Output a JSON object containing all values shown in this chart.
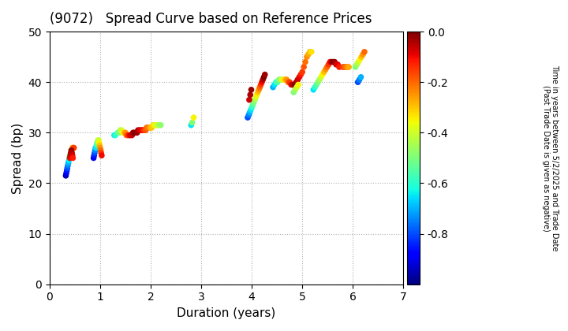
{
  "title": "(9072)   Spread Curve based on Reference Prices",
  "xlabel": "Duration (years)",
  "ylabel": "Spread (bp)",
  "colorbar_label": "Time in years between 5/2/2025 and Trade Date\n(Past Trade Date is given as negative)",
  "xlim": [
    0,
    7
  ],
  "ylim": [
    0,
    50
  ],
  "xticks": [
    0,
    1,
    2,
    3,
    4,
    5,
    6,
    7
  ],
  "yticks": [
    0,
    10,
    20,
    30,
    40,
    50
  ],
  "cmap": "jet",
  "clim": [
    -1.0,
    0.0
  ],
  "points": {
    "duration": [
      0.32,
      0.33,
      0.34,
      0.35,
      0.36,
      0.37,
      0.38,
      0.39,
      0.4,
      0.41,
      0.42,
      0.43,
      0.44,
      0.45,
      0.46,
      0.47,
      0.48,
      0.4,
      0.41,
      0.42,
      0.43,
      0.44,
      0.45,
      0.46,
      0.87,
      0.88,
      0.89,
      0.9,
      0.91,
      0.92,
      0.93,
      0.94,
      0.95,
      0.96,
      0.97,
      0.98,
      0.99,
      1.0,
      1.01,
      1.02,
      1.03,
      1.28,
      1.3,
      1.35,
      1.38,
      1.4,
      1.42,
      1.45,
      1.48,
      1.5,
      1.52,
      1.55,
      1.58,
      1.6,
      1.63,
      1.65,
      1.67,
      1.7,
      1.73,
      1.75,
      1.78,
      1.8,
      1.83,
      1.85,
      1.88,
      1.9,
      1.92,
      1.95,
      1.98,
      2.0,
      2.02,
      2.05,
      2.08,
      2.1,
      2.13,
      2.15,
      2.18,
      2.2,
      2.8,
      2.82,
      2.85,
      3.92,
      3.94,
      3.96,
      3.98,
      4.0,
      4.02,
      4.04,
      4.06,
      4.08,
      4.1,
      4.12,
      4.14,
      4.16,
      4.18,
      4.2,
      4.22,
      4.24,
      4.26,
      3.95,
      3.97,
      3.99,
      4.42,
      4.45,
      4.48,
      4.51,
      4.54,
      4.57,
      4.6,
      4.63,
      4.66,
      4.69,
      4.72,
      4.75,
      4.78,
      4.81,
      4.85,
      4.88,
      4.91,
      4.94,
      4.97,
      5.0,
      5.03,
      5.06,
      5.09,
      5.12,
      5.15,
      5.18,
      4.83,
      4.86,
      4.89,
      4.92,
      5.22,
      5.25,
      5.28,
      5.31,
      5.34,
      5.37,
      5.4,
      5.43,
      5.46,
      5.49,
      5.52,
      5.55,
      5.58,
      5.61,
      5.64,
      5.67,
      5.7,
      5.73,
      5.8,
      5.83,
      5.86,
      5.89,
      5.92,
      6.05,
      6.08,
      6.11,
      6.14,
      6.17,
      6.2,
      6.23,
      6.1,
      6.13,
      6.16
    ],
    "spread": [
      21.5,
      22.0,
      22.5,
      23.0,
      23.5,
      24.0,
      24.5,
      25.0,
      25.5,
      25.5,
      26.0,
      26.5,
      26.5,
      27.0,
      27.0,
      27.0,
      27.0,
      25.0,
      25.5,
      26.0,
      26.5,
      26.0,
      25.5,
      25.0,
      25.0,
      25.5,
      26.0,
      26.5,
      27.0,
      27.0,
      27.5,
      28.0,
      28.0,
      28.5,
      28.5,
      28.0,
      27.5,
      27.0,
      26.5,
      26.0,
      25.5,
      29.5,
      29.5,
      30.0,
      30.0,
      30.5,
      30.5,
      30.0,
      30.0,
      30.0,
      29.5,
      29.5,
      29.5,
      29.5,
      29.5,
      30.0,
      30.0,
      30.0,
      30.0,
      30.5,
      30.5,
      30.5,
      30.5,
      30.5,
      30.5,
      30.5,
      31.0,
      31.0,
      31.0,
      31.0,
      31.0,
      31.5,
      31.5,
      31.5,
      31.5,
      31.5,
      31.5,
      31.5,
      31.5,
      32.0,
      33.0,
      33.0,
      33.5,
      34.0,
      34.5,
      35.0,
      35.5,
      36.0,
      36.5,
      37.0,
      37.5,
      38.0,
      38.5,
      39.0,
      39.5,
      40.0,
      40.5,
      41.0,
      41.5,
      36.5,
      37.5,
      38.5,
      39.0,
      39.5,
      40.0,
      40.0,
      40.5,
      40.5,
      40.5,
      40.5,
      40.5,
      40.5,
      40.0,
      40.0,
      39.5,
      39.5,
      39.5,
      40.0,
      40.5,
      41.0,
      41.5,
      42.0,
      43.0,
      44.0,
      45.0,
      45.5,
      46.0,
      46.0,
      38.0,
      38.5,
      39.0,
      39.5,
      38.5,
      39.0,
      39.5,
      40.0,
      40.5,
      41.0,
      41.5,
      42.0,
      42.5,
      43.0,
      43.5,
      44.0,
      44.0,
      44.0,
      44.0,
      43.5,
      43.5,
      43.0,
      43.0,
      43.0,
      43.0,
      43.0,
      43.0,
      43.0,
      43.5,
      44.0,
      44.5,
      45.0,
      45.5,
      46.0,
      40.0,
      40.5,
      41.0
    ],
    "color": [
      -0.95,
      -0.9,
      -0.85,
      -0.8,
      -0.75,
      -0.7,
      -0.65,
      -0.6,
      -0.55,
      -0.5,
      -0.45,
      -0.4,
      -0.35,
      -0.3,
      -0.25,
      -0.2,
      -0.15,
      -0.1,
      -0.07,
      -0.04,
      -0.02,
      -0.05,
      -0.08,
      -0.12,
      -0.9,
      -0.85,
      -0.8,
      -0.75,
      -0.7,
      -0.65,
      -0.6,
      -0.55,
      -0.5,
      -0.45,
      -0.4,
      -0.35,
      -0.3,
      -0.25,
      -0.2,
      -0.15,
      -0.1,
      -0.65,
      -0.6,
      -0.55,
      -0.5,
      -0.45,
      -0.4,
      -0.35,
      -0.3,
      -0.25,
      -0.2,
      -0.15,
      -0.1,
      -0.08,
      -0.06,
      -0.04,
      -0.02,
      0.0,
      -0.02,
      -0.04,
      -0.06,
      -0.08,
      -0.1,
      -0.12,
      -0.15,
      -0.18,
      -0.2,
      -0.22,
      -0.25,
      -0.28,
      -0.3,
      -0.32,
      -0.35,
      -0.38,
      -0.4,
      -0.42,
      -0.45,
      -0.48,
      -0.65,
      -0.5,
      -0.35,
      -0.8,
      -0.75,
      -0.7,
      -0.65,
      -0.6,
      -0.55,
      -0.5,
      -0.45,
      -0.4,
      -0.35,
      -0.3,
      -0.25,
      -0.2,
      -0.15,
      -0.1,
      -0.05,
      0.0,
      -0.03,
      -0.07,
      -0.04,
      -0.02,
      -0.7,
      -0.65,
      -0.6,
      -0.55,
      -0.5,
      -0.45,
      -0.4,
      -0.35,
      -0.3,
      -0.25,
      -0.2,
      -0.15,
      -0.1,
      -0.05,
      0.0,
      -0.03,
      -0.06,
      -0.09,
      -0.12,
      -0.15,
      -0.18,
      -0.21,
      -0.24,
      -0.27,
      -0.3,
      -0.33,
      -0.5,
      -0.45,
      -0.4,
      -0.35,
      -0.65,
      -0.6,
      -0.55,
      -0.5,
      -0.45,
      -0.4,
      -0.35,
      -0.3,
      -0.25,
      -0.2,
      -0.15,
      -0.1,
      -0.05,
      0.0,
      -0.03,
      -0.06,
      -0.09,
      -0.12,
      -0.15,
      -0.18,
      -0.21,
      -0.24,
      -0.27,
      -0.5,
      -0.45,
      -0.4,
      -0.35,
      -0.3,
      -0.25,
      -0.2,
      -0.8,
      -0.75,
      -0.7
    ]
  },
  "background_color": "#ffffff",
  "grid_color": "#b0b0b0",
  "marker_size": 20
}
